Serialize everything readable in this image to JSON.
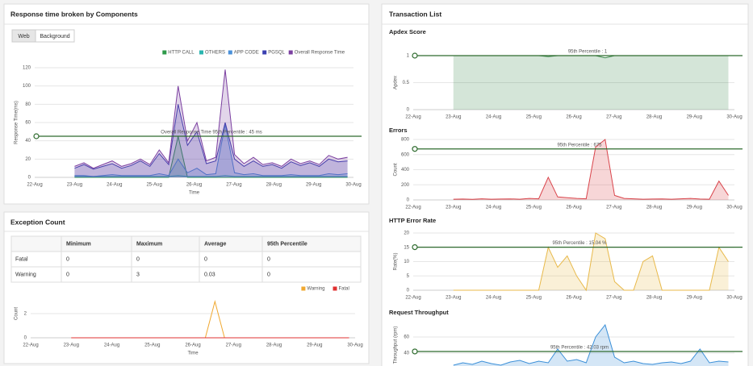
{
  "response_panel": {
    "title": "Response time broken by Components",
    "tabs": [
      "Web",
      "Background"
    ],
    "chart": {
      "type": "area",
      "xticks": [
        "22-Aug",
        "23-Aug",
        "24-Aug",
        "25-Aug",
        "26-Aug",
        "27-Aug",
        "28-Aug",
        "29-Aug",
        "30-Aug"
      ],
      "ylim": [
        0,
        120
      ],
      "yticks": [
        0,
        20,
        40,
        60,
        80,
        100,
        120
      ],
      "xlabel": "Time",
      "ylabel": "Response Time(ms)",
      "annotation": "Overall Response Time 95th Percentile : 45 ms",
      "threshold": 45,
      "series": [
        {
          "name": "HTTP CALL",
          "color": "#2e9a4a",
          "values": [
            0,
            0,
            0,
            0,
            0,
            0,
            0,
            0,
            0,
            0,
            0,
            45,
            0,
            0,
            0,
            0,
            0,
            0,
            0,
            0,
            0,
            0,
            0,
            0,
            0,
            0,
            0,
            0,
            0,
            0
          ]
        },
        {
          "name": "OTHERS",
          "color": "#2bb5b0",
          "values": [
            1,
            1,
            1,
            1,
            1,
            1,
            1,
            1,
            1,
            1,
            1,
            2,
            1,
            1,
            1,
            1,
            2,
            1,
            1,
            1,
            1,
            1,
            1,
            1,
            1,
            1,
            1,
            1,
            1,
            1
          ]
        },
        {
          "name": "APP CODE",
          "color": "#4a90d9",
          "values": [
            2,
            2,
            1,
            2,
            3,
            2,
            2,
            2,
            2,
            4,
            2,
            20,
            5,
            10,
            3,
            4,
            58,
            5,
            3,
            4,
            2,
            2,
            2,
            3,
            2,
            2,
            2,
            4,
            3,
            4
          ]
        },
        {
          "name": "PGSQL",
          "color": "#3a3fb0",
          "values": [
            10,
            14,
            9,
            12,
            15,
            10,
            13,
            18,
            12,
            26,
            14,
            80,
            35,
            50,
            15,
            18,
            60,
            20,
            12,
            18,
            12,
            14,
            10,
            17,
            13,
            16,
            12,
            20,
            17,
            18
          ]
        },
        {
          "name": "Overall Response Time",
          "color": "#7b3fa0",
          "values": [
            12,
            16,
            10,
            14,
            18,
            12,
            15,
            20,
            14,
            30,
            16,
            100,
            40,
            60,
            18,
            22,
            118,
            25,
            15,
            22,
            14,
            16,
            12,
            20,
            15,
            18,
            14,
            24,
            20,
            22
          ]
        }
      ]
    }
  },
  "exception_panel": {
    "title": "Exception Count",
    "table": {
      "columns": [
        "Minimum",
        "Maximum",
        "Average",
        "95th Percentile"
      ],
      "rows": [
        {
          "label": "Fatal",
          "cells": [
            0,
            0,
            0,
            0
          ]
        },
        {
          "label": "Warning",
          "cells": [
            0,
            3,
            0.03,
            0
          ]
        }
      ]
    },
    "chart": {
      "type": "line",
      "xticks": [
        "22-Aug",
        "23-Aug",
        "24-Aug",
        "25-Aug",
        "26-Aug",
        "27-Aug",
        "28-Aug",
        "29-Aug",
        "30-Aug"
      ],
      "ylim": [
        0,
        4
      ],
      "yticks": [
        0,
        2
      ],
      "xlabel": "Time",
      "ylabel": "Count",
      "series": [
        {
          "name": "Warning",
          "color": "#f0a830",
          "values": [
            0,
            0,
            0,
            0,
            0,
            0,
            0,
            0,
            0,
            0,
            0,
            0,
            0,
            0,
            0,
            3,
            0,
            0,
            0,
            0,
            0,
            0,
            0,
            0,
            0,
            0,
            0,
            0,
            0,
            0
          ]
        },
        {
          "name": "Fatal",
          "color": "#e03030",
          "values": [
            0,
            0,
            0,
            0,
            0,
            0,
            0,
            0,
            0,
            0,
            0,
            0,
            0,
            0,
            0,
            0,
            0,
            0,
            0,
            0,
            0,
            0,
            0,
            0,
            0,
            0,
            0,
            0,
            0,
            0
          ]
        }
      ]
    }
  },
  "transaction_panel": {
    "title": "Transaction List",
    "charts": [
      {
        "type": "area",
        "title": "Apdex Score",
        "ylabel": "Apdex",
        "ylim": [
          0,
          1
        ],
        "yticks": [
          0,
          0.5,
          1
        ],
        "xticks": [
          "22-Aug",
          "23-Aug",
          "24-Aug",
          "25-Aug",
          "26-Aug",
          "27-Aug",
          "28-Aug",
          "29-Aug",
          "30-Aug"
        ],
        "annotation": "95th Percentile : 1",
        "threshold": 1,
        "series": [
          {
            "name": "Apdex",
            "color": "#3c8a4c",
            "values": [
              1,
              1,
              1,
              1,
              1,
              1,
              1,
              1,
              1,
              1,
              0.98,
              1,
              1,
              1,
              1,
              1,
              0.96,
              1,
              1,
              1,
              1,
              1,
              1,
              1,
              1,
              1,
              1,
              1,
              1,
              1
            ]
          }
        ]
      },
      {
        "type": "area",
        "title": "Errors",
        "ylabel": "Count",
        "ylim": [
          0,
          800
        ],
        "yticks": [
          0,
          200,
          400,
          600,
          800
        ],
        "xticks": [
          "22-Aug",
          "23-Aug",
          "24-Aug",
          "25-Aug",
          "26-Aug",
          "27-Aug",
          "28-Aug",
          "29-Aug",
          "30-Aug"
        ],
        "annotation": "95th Percentile : 675",
        "threshold": 675,
        "series": [
          {
            "name": "Errors",
            "color": "#d9434a",
            "values": [
              10,
              12,
              8,
              15,
              10,
              12,
              14,
              10,
              20,
              15,
              300,
              40,
              30,
              20,
              15,
              700,
              800,
              60,
              20,
              15,
              10,
              12,
              14,
              10,
              15,
              20,
              12,
              10,
              250,
              60
            ]
          }
        ]
      },
      {
        "type": "area",
        "title": "HTTP Error Rate",
        "ylabel": "Rate(%)",
        "ylim": [
          0,
          20
        ],
        "yticks": [
          0,
          5,
          10,
          15,
          20
        ],
        "xticks": [
          "22-Aug",
          "23-Aug",
          "24-Aug",
          "25-Aug",
          "26-Aug",
          "27-Aug",
          "28-Aug",
          "29-Aug",
          "30-Aug"
        ],
        "annotation": "95th Percentile : 15.04 %",
        "threshold": 15.04,
        "series": [
          {
            "name": "HTTP Error Rate",
            "color": "#e8b94a",
            "values": [
              0,
              0,
              0,
              0,
              0,
              0,
              0,
              0,
              0,
              0,
              15,
              8,
              12,
              5,
              0,
              20,
              18,
              3,
              0,
              0,
              10,
              12,
              0,
              0,
              0,
              0,
              0,
              0,
              15,
              10
            ]
          }
        ]
      },
      {
        "type": "area",
        "title": "Request Throughput",
        "ylabel": "Throughput (rpm)",
        "ylim": [
          20,
          80
        ],
        "yticks": [
          40,
          60
        ],
        "annotation": "95th Percentile : 42.03 rpm",
        "threshold": 42.03,
        "series": [
          {
            "name": "Request Throughput",
            "color": "#3a8fd8",
            "values": [
              25,
              28,
              26,
              30,
              27,
              25,
              29,
              31,
              27,
              30,
              28,
              45,
              30,
              32,
              28,
              60,
              75,
              35,
              28,
              30,
              27,
              26,
              28,
              29,
              27,
              30,
              45,
              28,
              30,
              29
            ]
          }
        ]
      }
    ]
  }
}
